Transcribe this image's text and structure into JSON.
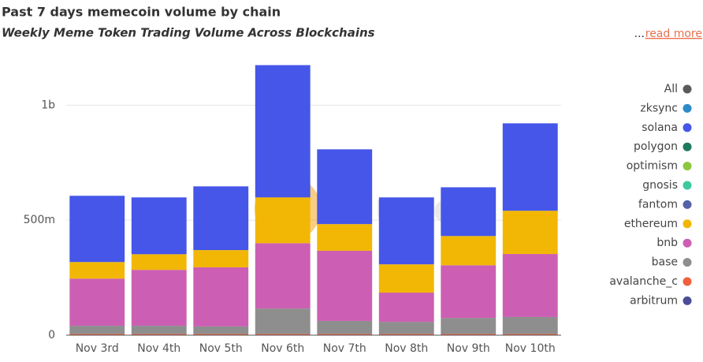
{
  "chart_data": {
    "type": "stacked_bar",
    "title": "Past 7 days memecoin volume by chain",
    "subtitle": "Weekly Meme Token Trading Volume Across Blockchains",
    "more_prefix": "...",
    "more_link": "read more",
    "legend_all": "All",
    "legend_all_color": "#5a5a5a",
    "watermark": "Dune",
    "categories": [
      "Nov 3rd",
      "Nov 4th",
      "Nov 5th",
      "Nov 6th",
      "Nov 7th",
      "Nov 8th",
      "Nov 9th",
      "Nov 10th"
    ],
    "series": [
      {
        "name": "arbitrum",
        "color": "#4a4f96",
        "values": [
          0,
          0,
          0,
          0,
          0,
          0,
          0,
          0
        ]
      },
      {
        "name": "avalanche_c",
        "color": "#f0603c",
        "values": [
          5000000,
          5000000,
          5000000,
          5000000,
          5000000,
          5000000,
          5000000,
          5000000
        ]
      },
      {
        "name": "base",
        "color": "#8e8e8e",
        "values": [
          36000000,
          36000000,
          33000000,
          111000000,
          57000000,
          53000000,
          70000000,
          74000000
        ]
      },
      {
        "name": "bnb",
        "color": "#cc5fb3",
        "values": [
          205000000,
          243000000,
          257000000,
          284000000,
          305000000,
          127000000,
          229000000,
          274000000
        ]
      },
      {
        "name": "ethereum",
        "color": "#f2b705",
        "values": [
          72000000,
          68000000,
          75000000,
          199000000,
          116000000,
          123000000,
          127000000,
          188000000
        ]
      },
      {
        "name": "fantom",
        "color": "#5462a8",
        "values": [
          0,
          0,
          0,
          0,
          0,
          0,
          0,
          0
        ]
      },
      {
        "name": "gnosis",
        "color": "#3cc9a0",
        "values": [
          0,
          0,
          0,
          0,
          0,
          0,
          0,
          0
        ]
      },
      {
        "name": "optimism",
        "color": "#8dc63f",
        "values": [
          0,
          0,
          0,
          0,
          0,
          0,
          0,
          0
        ]
      },
      {
        "name": "polygon",
        "color": "#1e7a5f",
        "values": [
          0,
          0,
          0,
          0,
          0,
          0,
          0,
          0
        ]
      },
      {
        "name": "solana",
        "color": "#4556e8",
        "values": [
          288000000,
          247000000,
          277000000,
          575000000,
          325000000,
          291000000,
          212000000,
          380000000
        ]
      },
      {
        "name": "zksync",
        "color": "#2c8ac9",
        "values": [
          0,
          0,
          0,
          0,
          0,
          0,
          0,
          0
        ]
      }
    ],
    "ylim": [
      0,
      1200000000
    ],
    "yticks": [
      0,
      {
        "value": 500000000,
        "label": "500m"
      },
      {
        "value": 1000000000,
        "label": "1b"
      }
    ],
    "grid": true,
    "legend_position": "right"
  }
}
